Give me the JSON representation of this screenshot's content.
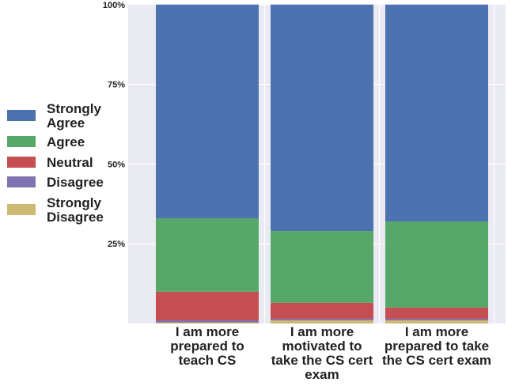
{
  "chart_data": {
    "type": "bar",
    "stacked": true,
    "categories": [
      [
        "I am more",
        "prepared to",
        "teach CS"
      ],
      [
        "I am more",
        "motivated to",
        "take the CS cert",
        "exam"
      ],
      [
        "I am more",
        "prepared to take",
        "the CS cert exam"
      ]
    ],
    "series": [
      {
        "name": [
          "Strongly",
          "Disagree"
        ],
        "color": "#ccb974",
        "values": [
          0.3,
          1.0,
          1.0
        ]
      },
      {
        "name": [
          "Disagree"
        ],
        "color": "#8172b2",
        "values": [
          0.7,
          0.5,
          0.5
        ]
      },
      {
        "name": [
          "Neutral"
        ],
        "color": "#c44e52",
        "values": [
          9.0,
          5.0,
          3.5
        ]
      },
      {
        "name": [
          "Agree"
        ],
        "color": "#55a868",
        "values": [
          23.0,
          22.5,
          27.0
        ]
      },
      {
        "name": [
          "Strongly",
          "Agree"
        ],
        "color": "#4c72b0",
        "values": [
          67.0,
          71.0,
          68.0
        ]
      }
    ],
    "legend_order": [
      4,
      3,
      2,
      1,
      0
    ],
    "y_ticks": [
      {
        "value": 25,
        "label": "25%"
      },
      {
        "value": 50,
        "label": "50%"
      },
      {
        "value": 75,
        "label": "75%"
      },
      {
        "value": 100,
        "label": "100%"
      }
    ],
    "ylim": [
      0,
      100
    ],
    "grid": true,
    "background": "#eaeaf2",
    "legend_placement": "left",
    "title": "",
    "xlabel": "",
    "ylabel": ""
  }
}
